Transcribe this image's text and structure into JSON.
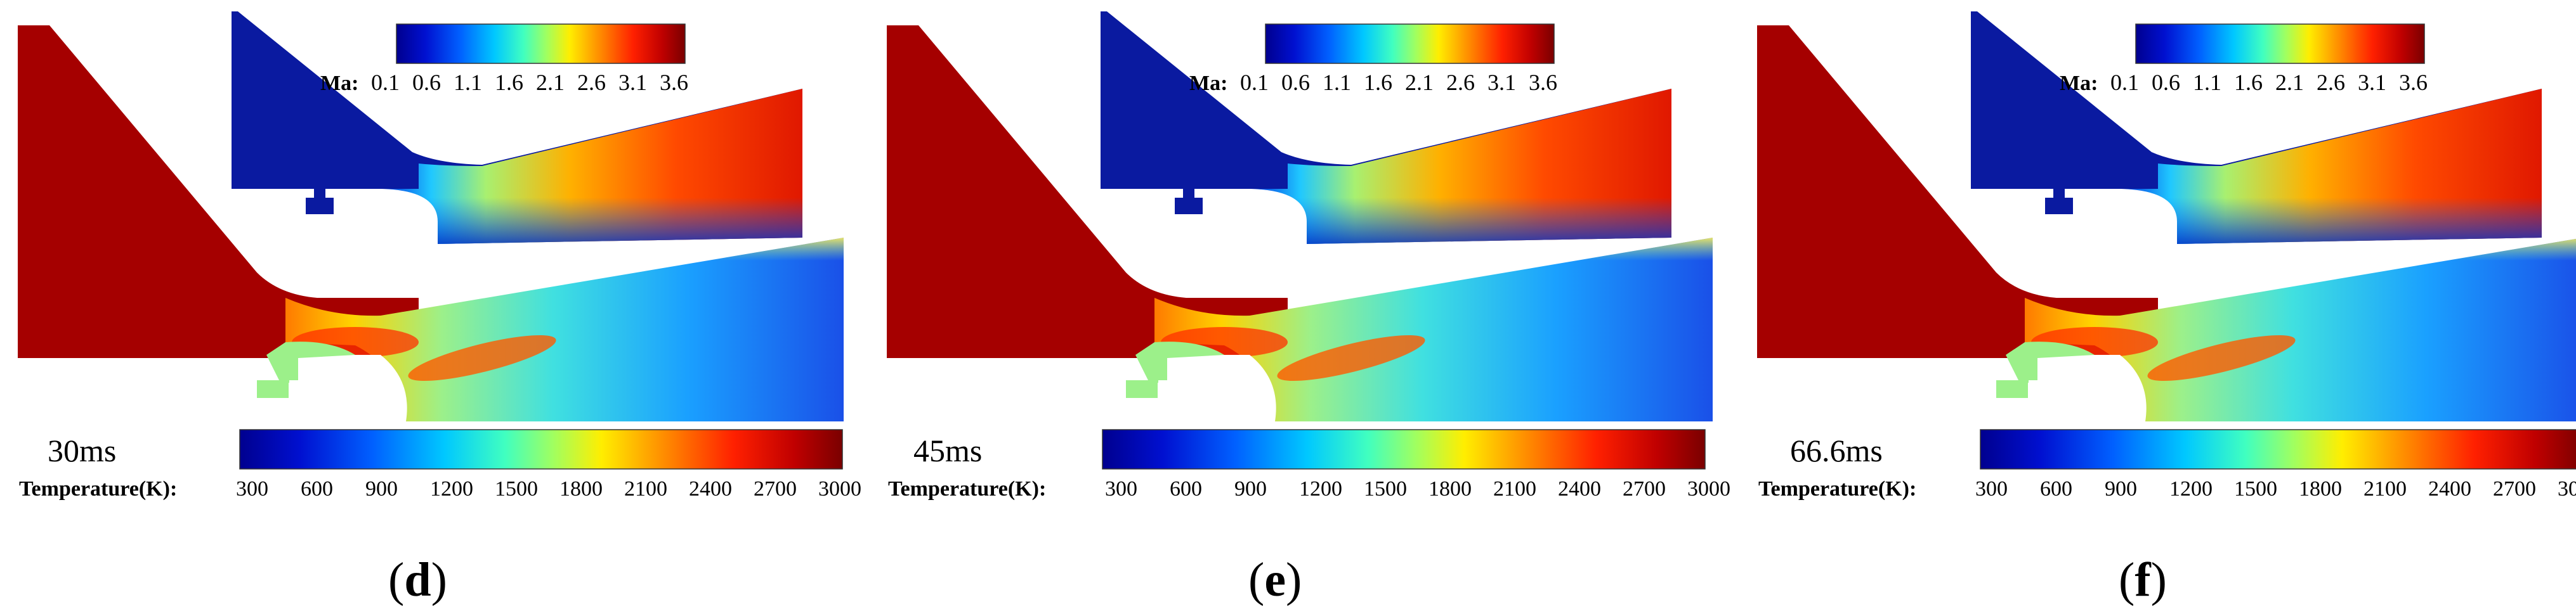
{
  "temperature_colorbar": {
    "label": "Temperature(K):",
    "ticks": [
      "300",
      "600",
      "900",
      "1200",
      "1500",
      "1800",
      "2100",
      "2400",
      "2700",
      "3000"
    ]
  },
  "mach_colorbar": {
    "label": "Ma:",
    "ticks": [
      "0.1",
      "0.6",
      "1.1",
      "1.6",
      "2.1",
      "2.6",
      "3.1",
      "3.6"
    ]
  },
  "panels": [
    {
      "time": "30ms",
      "caption": {
        "open": "(",
        "letter": "d",
        "close": ")"
      }
    },
    {
      "time": "45ms",
      "caption": {
        "open": "(",
        "letter": "e",
        "close": ")"
      }
    },
    {
      "time": "66.6ms",
      "caption": {
        "open": "(",
        "letter": "f",
        "close": ")"
      }
    }
  ],
  "colors": {
    "hot": "#a50000",
    "cold": "#0a1aa0",
    "mid": "#9cf08a",
    "colormap": [
      "#00008f",
      "#0010c8",
      "#0040ff",
      "#0080ff",
      "#00c0ff",
      "#30ffd0",
      "#80ff80",
      "#d0ff30",
      "#ffd000",
      "#ff8000",
      "#ff3000",
      "#c00000",
      "#800000"
    ]
  }
}
